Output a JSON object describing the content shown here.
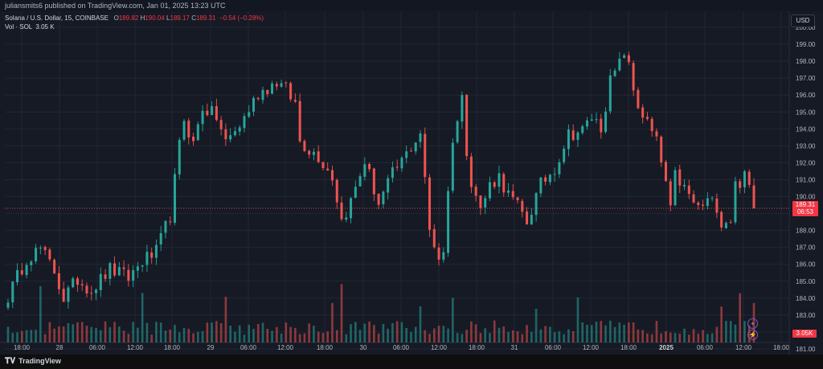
{
  "attribution": "juliansmits6 published on TradingView.com, Jan 01, 2025 13:23 UTC",
  "legend": {
    "symbol": "Solana / U.S. Dollar, 15, COINBASE",
    "o_label": "O",
    "o_value": "189.82",
    "h_label": "H",
    "h_value": "190.04",
    "l_label": "L",
    "l_value": "189.17",
    "c_label": "C",
    "c_value": "189.31",
    "change": "−0.54 (−0.28%)",
    "vol_label": "Vol · SOL",
    "vol_value": "3.05 K"
  },
  "currency": "USD",
  "last_price_tag": {
    "price": "189.31",
    "countdown": "06:53"
  },
  "volume_tag": "3.05K",
  "footer": {
    "brand": "TradingView"
  },
  "colors": {
    "up": "#26a69a",
    "down": "#ef5350",
    "background": "#161a25",
    "grid": "#232733",
    "text": "#b2b5be"
  },
  "chart_data": {
    "type": "candlestick",
    "symbol": "SOL/USD",
    "interval": "15",
    "y_ticks": [
      "181.00",
      "182.00",
      "183.00",
      "184.00",
      "185.00",
      "186.00",
      "187.00",
      "188.00",
      "189.00",
      "190.00",
      "191.00",
      "192.00",
      "193.00",
      "194.00",
      "195.00",
      "196.00",
      "197.00",
      "198.00",
      "199.00",
      "200.00"
    ],
    "y_range": [
      181,
      200
    ],
    "x_ticks": [
      "18:00",
      "28",
      "06:00",
      "12:00",
      "18:00",
      "29",
      "06:00",
      "12:00",
      "18:00",
      "30",
      "06:00",
      "12:00",
      "18:00",
      "31",
      "06:00",
      "12:00",
      "18:00",
      "2025",
      "06:00",
      "12:00",
      "18:00"
    ],
    "x_ticks_bold": [
      "2025"
    ],
    "last_close": 189.31,
    "close_path": [
      [
        0,
        184.1
      ],
      [
        4,
        186.4
      ],
      [
        7,
        186.9
      ],
      [
        10,
        185.6
      ],
      [
        12,
        184.0
      ],
      [
        15,
        185.1
      ],
      [
        18,
        184.5
      ],
      [
        22,
        185.7
      ],
      [
        26,
        185.2
      ],
      [
        29,
        186.2
      ],
      [
        32,
        186.7
      ],
      [
        35,
        188.9
      ],
      [
        37,
        193.0
      ],
      [
        38,
        194.6
      ],
      [
        40,
        193.1
      ],
      [
        42,
        195.3
      ],
      [
        45,
        194.7
      ],
      [
        47,
        193.2
      ],
      [
        50,
        194.2
      ],
      [
        54,
        196.1
      ],
      [
        58,
        196.8
      ],
      [
        60,
        196.3
      ],
      [
        62,
        195.5
      ],
      [
        63,
        193.3
      ],
      [
        65,
        192.8
      ],
      [
        67,
        192.4
      ],
      [
        70,
        191.2
      ],
      [
        72,
        188.6
      ],
      [
        74,
        189.7
      ],
      [
        77,
        192.1
      ],
      [
        80,
        189.6
      ],
      [
        83,
        191.3
      ],
      [
        86,
        192.5
      ],
      [
        89,
        193.8
      ],
      [
        91,
        188.0
      ],
      [
        93,
        186.4
      ],
      [
        94,
        186.9
      ],
      [
        95,
        190.2
      ],
      [
        96,
        193.5
      ],
      [
        97,
        194.5
      ],
      [
        98,
        195.8
      ],
      [
        99,
        192.8
      ],
      [
        100,
        191.0
      ],
      [
        102,
        189.2
      ],
      [
        104,
        190.7
      ],
      [
        106,
        191.2
      ],
      [
        108,
        190.1
      ],
      [
        110,
        189.4
      ],
      [
        112,
        188.5
      ],
      [
        115,
        190.7
      ],
      [
        118,
        191.7
      ],
      [
        121,
        193.7
      ],
      [
        124,
        193.9
      ],
      [
        126,
        194.7
      ],
      [
        128,
        194.1
      ],
      [
        130,
        196.8
      ],
      [
        132,
        197.8
      ],
      [
        133,
        198.6
      ],
      [
        134,
        197.6
      ],
      [
        135,
        196.3
      ],
      [
        136,
        195.4
      ],
      [
        138,
        194.3
      ],
      [
        140,
        193.2
      ],
      [
        142,
        190.8
      ],
      [
        143,
        189.1
      ],
      [
        144,
        191.2
      ],
      [
        145,
        190.9
      ],
      [
        147,
        190.0
      ],
      [
        149,
        189.3
      ],
      [
        151,
        189.7
      ],
      [
        153,
        189.5
      ],
      [
        154,
        188.5
      ],
      [
        156,
        188.7
      ],
      [
        157,
        190.7
      ],
      [
        159,
        191.1
      ],
      [
        160,
        190.6
      ],
      [
        161,
        189.31
      ]
    ],
    "volume_range": [
      0,
      100
    ]
  }
}
